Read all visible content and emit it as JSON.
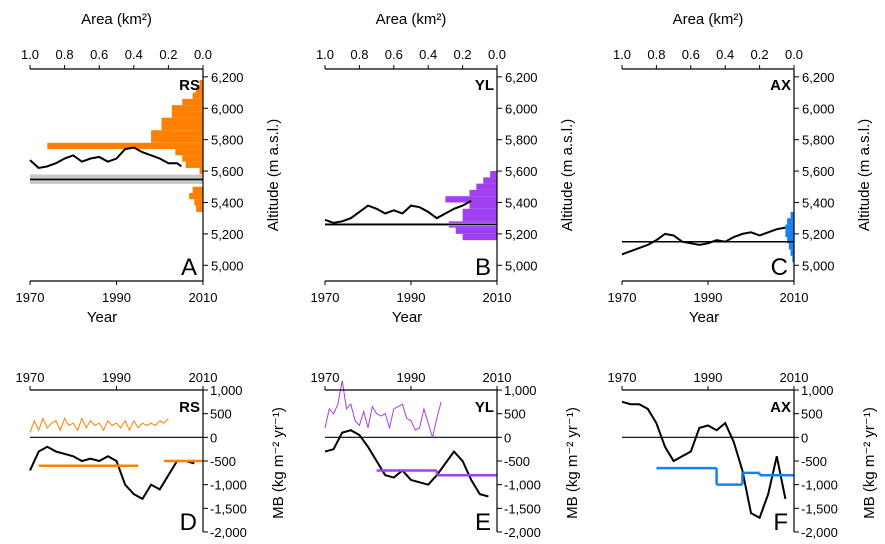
{
  "chart_data": [
    {
      "id": "A",
      "type": "area-altitude",
      "code": "RS",
      "letter": "A",
      "top_axis_label": "Area (km²)",
      "xlabel": "Year",
      "ylabel": "Altitude (m a.s.l.)",
      "area_ticks": [
        "1.0",
        "0.8",
        "0.6",
        "0.4",
        "0.2",
        "0.0"
      ],
      "year_ticks": [
        "1970",
        "1990",
        "2010"
      ],
      "alt_ticks": [
        "5,000",
        "5,200",
        "5,400",
        "5,600",
        "5,800",
        "6,000",
        "6,200"
      ],
      "ylim": [
        4900,
        6250
      ],
      "area_lim": [
        1.0,
        0.0
      ],
      "year_lim": [
        1970,
        2010
      ],
      "color": "#ff8000",
      "hypsometry": {
        "alt_bottom": [
          5340,
          5380,
          5420,
          5460,
          5500,
          5540,
          5580,
          5620,
          5660,
          5700,
          5740,
          5780,
          5820,
          5860,
          5900,
          5940,
          5980,
          6020,
          6060,
          6100,
          6140
        ],
        "area": [
          0.04,
          0.05,
          0.08,
          0.06,
          0,
          0,
          0.02,
          0.1,
          0.12,
          0.16,
          0.9,
          0.3,
          0.3,
          0.24,
          0.24,
          0.18,
          0.18,
          0.12,
          0.06,
          0.04,
          0.02
        ]
      },
      "ela_band": [
        5518,
        5578
      ],
      "ela_line": 5547,
      "altitude_series": {
        "years": [
          1970,
          1972,
          1974,
          1976,
          1978,
          1980,
          1982,
          1984,
          1986,
          1988,
          1990,
          1992,
          1994,
          1996,
          1998,
          2000,
          2002,
          2004,
          2005
        ],
        "values": [
          5670,
          5620,
          5630,
          5650,
          5680,
          5700,
          5660,
          5680,
          5690,
          5660,
          5680,
          5740,
          5750,
          5720,
          5700,
          5680,
          5650,
          5650,
          5630
        ]
      }
    },
    {
      "id": "B",
      "type": "area-altitude",
      "code": "YL",
      "letter": "B",
      "top_axis_label": "Area (km²)",
      "xlabel": "Year",
      "ylabel": "Altitude (m a.s.l.)",
      "area_ticks": [
        "1.0",
        "0.8",
        "0.6",
        "0.4",
        "0.2",
        "0.0"
      ],
      "year_ticks": [
        "1970",
        "1990",
        "2010"
      ],
      "alt_ticks": [
        "5,000",
        "5,200",
        "5,400",
        "5,600",
        "5,800",
        "6,000",
        "6,200"
      ],
      "ylim": [
        4900,
        6250
      ],
      "area_lim": [
        1.0,
        0.0
      ],
      "year_lim": [
        1970,
        2010
      ],
      "color": "#a040f0",
      "hypsometry": {
        "alt_bottom": [
          5160,
          5200,
          5240,
          5280,
          5320,
          5360,
          5400,
          5440,
          5480,
          5520,
          5560
        ],
        "area": [
          0.2,
          0.24,
          0.28,
          0.2,
          0.2,
          0.16,
          0.3,
          0.16,
          0.12,
          0.08,
          0.04
        ]
      },
      "ela_band": [
        5250,
        5270
      ],
      "ela_line": 5260,
      "altitude_series": {
        "years": [
          1970,
          1972,
          1974,
          1976,
          1978,
          1980,
          1982,
          1984,
          1986,
          1988,
          1990,
          1992,
          1994,
          1996,
          1998,
          2000,
          2002,
          2004
        ],
        "values": [
          5290,
          5270,
          5280,
          5300,
          5340,
          5380,
          5360,
          5330,
          5350,
          5330,
          5380,
          5370,
          5340,
          5300,
          5330,
          5360,
          5380,
          5410
        ]
      }
    },
    {
      "id": "C",
      "type": "area-altitude",
      "code": "AX",
      "letter": "C",
      "top_axis_label": "Area (km²)",
      "xlabel": "Year",
      "ylabel": "Altitude (m a.s.l.)",
      "area_ticks": [
        "1.0",
        "0.8",
        "0.6",
        "0.4",
        "0.2",
        "0.0"
      ],
      "year_ticks": [
        "1970",
        "1990",
        "2010"
      ],
      "alt_ticks": [
        "5,000",
        "5,200",
        "5,400",
        "5,600",
        "5,800",
        "6,000",
        "6,200"
      ],
      "ylim": [
        4900,
        6250
      ],
      "area_lim": [
        1.0,
        0.0
      ],
      "year_lim": [
        1970,
        2010
      ],
      "color": "#1a80f0",
      "hypsometry": {
        "alt_bottom": [
          5020,
          5060,
          5100,
          5140,
          5180,
          5220,
          5260,
          5300
        ],
        "area": [
          0.01,
          0.02,
          0.03,
          0.04,
          0.05,
          0.05,
          0.04,
          0.02
        ]
      },
      "ela_band": [
        5150,
        5150
      ],
      "ela_line": 5150,
      "altitude_series": {
        "years": [
          1970,
          1972,
          1974,
          1976,
          1978,
          1980,
          1982,
          1984,
          1986,
          1988,
          1990,
          1992,
          1994,
          1996,
          1998,
          2000,
          2002,
          2004,
          2006,
          2008
        ],
        "values": [
          5070,
          5090,
          5110,
          5130,
          5160,
          5200,
          5190,
          5150,
          5140,
          5130,
          5140,
          5160,
          5150,
          5180,
          5200,
          5210,
          5190,
          5210,
          5230,
          5240
        ]
      }
    },
    {
      "id": "D",
      "type": "line",
      "code": "RS",
      "letter": "D",
      "ylabel": "MB (kg m⁻² yr⁻¹)",
      "year_ticks": [
        "1970",
        "1990",
        "2010"
      ],
      "mb_ticks": [
        "-2,000",
        "-1,500",
        "-1,000",
        "-500",
        "0",
        "500",
        "1,000"
      ],
      "ylim": [
        -2000,
        1000
      ],
      "year_lim": [
        1970,
        2010
      ],
      "color": "#ff8000",
      "thin_series": {
        "years": [
          1970,
          1971,
          1972,
          1973,
          1974,
          1975,
          1976,
          1977,
          1978,
          1979,
          1980,
          1981,
          1982,
          1983,
          1984,
          1985,
          1986,
          1987,
          1988,
          1989,
          1990,
          1991,
          1992,
          1993,
          1994,
          1995,
          1996,
          1997,
          1998,
          1999,
          2000,
          2001,
          2002
        ],
        "values": [
          100,
          350,
          150,
          400,
          200,
          300,
          350,
          150,
          400,
          250,
          300,
          150,
          400,
          200,
          350,
          250,
          300,
          150,
          350,
          250,
          300,
          200,
          350,
          150,
          350,
          200,
          300,
          250,
          300,
          250,
          350,
          300,
          400
        ]
      },
      "mb_series": {
        "years": [
          1970,
          1972,
          1974,
          1976,
          1978,
          1980,
          1982,
          1984,
          1986,
          1988,
          1990,
          1992,
          1994,
          1996,
          1998,
          2000,
          2002,
          2004,
          2006,
          2008
        ],
        "values": [
          -700,
          -300,
          -200,
          -300,
          -350,
          -400,
          -500,
          -450,
          -500,
          -400,
          -500,
          -1000,
          -1200,
          -1300,
          -1000,
          -1100,
          -800,
          -500,
          -500,
          -550
        ]
      },
      "flat_series": [
        {
          "x0": 1972,
          "x1": 1995,
          "value": -600
        },
        {
          "x0": 2001,
          "x1": 2010,
          "value": -500
        }
      ]
    },
    {
      "id": "E",
      "type": "line",
      "code": "YL",
      "letter": "E",
      "ylabel": "MB (kg m⁻² yr⁻¹)",
      "year_ticks": [
        "1970",
        "1990",
        "2010"
      ],
      "mb_ticks": [
        "-2,000",
        "-1,500",
        "-1,000",
        "-500",
        "0",
        "500",
        "1,000"
      ],
      "ylim": [
        -2000,
        1000
      ],
      "year_lim": [
        1970,
        2010
      ],
      "color": "#a040f0",
      "thin_series": {
        "years": [
          1970,
          1971,
          1972,
          1973,
          1974,
          1975,
          1976,
          1977,
          1978,
          1979,
          1980,
          1981,
          1982,
          1983,
          1984,
          1985,
          1986,
          1987,
          1988,
          1989,
          1990,
          1991,
          1992,
          1993,
          1994,
          1995,
          1996,
          1997
        ],
        "values": [
          200,
          600,
          500,
          700,
          1200,
          600,
          700,
          350,
          250,
          550,
          200,
          650,
          500,
          450,
          500,
          200,
          600,
          650,
          700,
          400,
          350,
          150,
          200,
          600,
          300,
          0,
          400,
          750
        ]
      },
      "mb_series": {
        "years": [
          1970,
          1972,
          1974,
          1976,
          1978,
          1980,
          1982,
          1984,
          1986,
          1988,
          1990,
          1992,
          1994,
          1996,
          1998,
          2000,
          2002,
          2004,
          2006,
          2008
        ],
        "values": [
          -300,
          -250,
          100,
          150,
          50,
          -200,
          -500,
          -800,
          -850,
          -700,
          -900,
          -950,
          -1000,
          -800,
          -550,
          -300,
          -500,
          -900,
          -1200,
          -1250
        ]
      },
      "flat_series": [
        {
          "x0": 1982,
          "x1": 1996,
          "value": -700
        },
        {
          "x0": 1996,
          "x1": 2010,
          "value": -800
        }
      ]
    },
    {
      "id": "F",
      "type": "line",
      "code": "AX",
      "letter": "F",
      "ylabel": "MB (kg m⁻² yr⁻¹)",
      "year_ticks": [
        "1970",
        "1990",
        "2010"
      ],
      "mb_ticks": [
        "-2,000",
        "-1,500",
        "-1,000",
        "-500",
        "0",
        "500",
        "1,000"
      ],
      "ylim": [
        -2000,
        1000
      ],
      "year_lim": [
        1970,
        2010
      ],
      "color": "#1a80f0",
      "thin_series": {
        "years": [],
        "values": []
      },
      "mb_series": {
        "years": [
          1970,
          1972,
          1974,
          1976,
          1978,
          1980,
          1982,
          1984,
          1986,
          1988,
          1990,
          1992,
          1994,
          1996,
          1998,
          2000,
          2002,
          2004,
          2006,
          2008
        ],
        "values": [
          750,
          700,
          700,
          600,
          300,
          -200,
          -500,
          -400,
          -300,
          200,
          250,
          150,
          300,
          -100,
          -700,
          -1600,
          -1700,
          -1200,
          -400,
          -1300
        ]
      },
      "flat_series": [
        {
          "x0": 1978,
          "x1": 1992,
          "value": -650
        },
        {
          "x0": 1992,
          "x1": 1998,
          "value": -1000
        },
        {
          "x0": 1998,
          "x1": 2002,
          "value": -750
        },
        {
          "x0": 2002,
          "x1": 2010,
          "value": -800
        }
      ]
    }
  ]
}
